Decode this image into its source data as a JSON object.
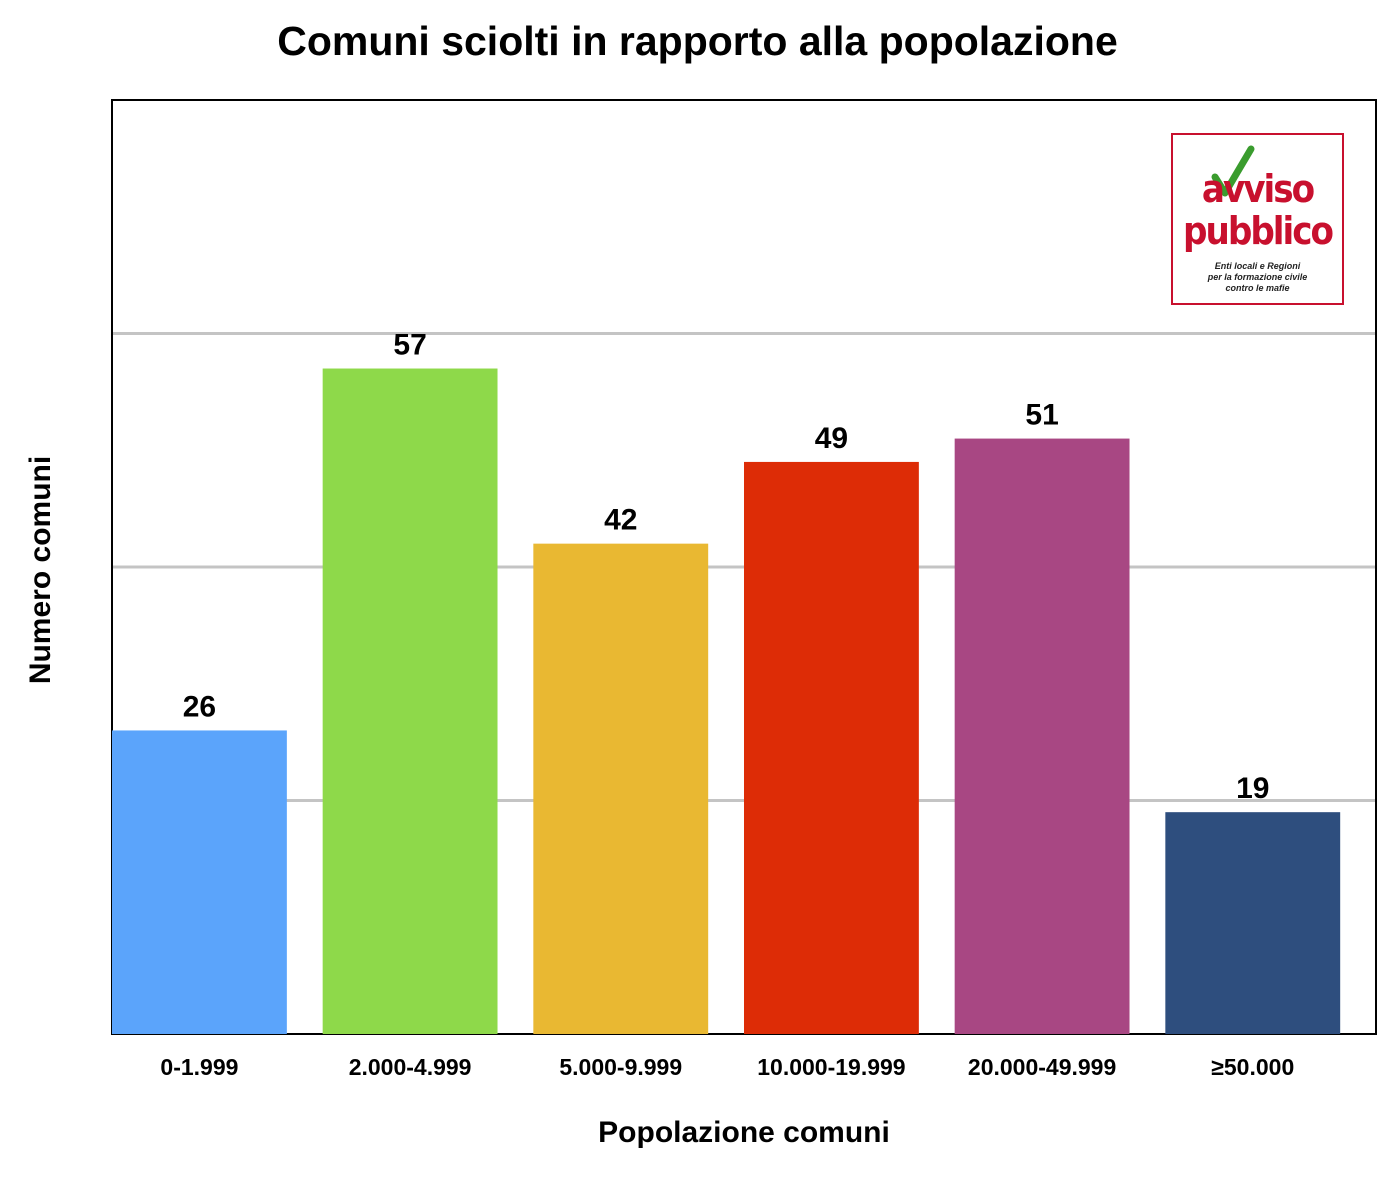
{
  "chart_data": {
    "type": "bar",
    "title": "Comuni sciolti in rapporto alla popolazione",
    "xlabel": "Popolazione comuni",
    "ylabel": "Numero comuni",
    "categories": [
      "0-1.999",
      "2.000-4.999",
      "5.000-9.999",
      "10.000-19.999",
      "20.000-49.999",
      "≥50.000"
    ],
    "values": [
      26,
      57,
      42,
      49,
      51,
      19
    ],
    "colors": [
      "#5ba4fb",
      "#8ed94a",
      "#e9b832",
      "#dd2c06",
      "#a84783",
      "#2e4e7e"
    ],
    "ylim": [
      0,
      80
    ],
    "gridlines": [
      20,
      40,
      60
    ],
    "grid": true,
    "legend": "none",
    "data_labels": true
  },
  "logo": {
    "line1": "avviso",
    "line2": "pubblico",
    "tagline": [
      "Enti locali e Regioni",
      "per la formazione civile",
      "contro le mafie"
    ],
    "border_color": "#c8102e",
    "check_color": "#3a9c2e"
  }
}
